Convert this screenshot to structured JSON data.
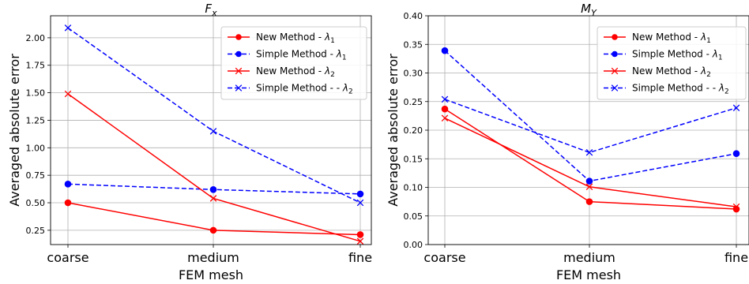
{
  "chart_data": [
    {
      "type": "line",
      "title": "F_x",
      "title_display": {
        "base": "F",
        "sub": "x"
      },
      "xlabel": "FEM mesh",
      "ylabel": "Averaged absolute error",
      "categories": [
        "coarse",
        "medium",
        "fine"
      ],
      "ylim": [
        0.12,
        2.2
      ],
      "yticks": [
        "0.25",
        "0.50",
        "0.75",
        "1.00",
        "1.25",
        "1.50",
        "1.75",
        "2.00"
      ],
      "ytick_values": [
        0.25,
        0.5,
        0.75,
        1.0,
        1.25,
        1.5,
        1.75,
        2.0
      ],
      "grid": true,
      "legend_position": "top-right",
      "series": [
        {
          "name": "New Method - λ1",
          "legend": {
            "text": "New Method - ",
            "sym": "λ",
            "sub": "1"
          },
          "color": "#ff0000",
          "linestyle": "solid",
          "marker": "circle",
          "values": [
            0.5,
            0.25,
            0.21
          ]
        },
        {
          "name": "Simple Method - λ1",
          "legend": {
            "text": "Simple Method - ",
            "sym": "λ",
            "sub": "1"
          },
          "color": "#0000ff",
          "linestyle": "dashed",
          "marker": "circle",
          "values": [
            0.67,
            0.62,
            0.58
          ]
        },
        {
          "name": "New Method - λ2",
          "legend": {
            "text": "New Method - ",
            "sym": "λ",
            "sub": "2"
          },
          "color": "#ff0000",
          "linestyle": "solid",
          "marker": "x",
          "values": [
            1.49,
            0.54,
            0.15
          ]
        },
        {
          "name": "Simple Method - - λ2",
          "legend": {
            "text": "Simple Method - - ",
            "sym": "λ",
            "sub": "2"
          },
          "color": "#0000ff",
          "linestyle": "dashed",
          "marker": "x",
          "values": [
            2.09,
            1.15,
            0.5
          ]
        }
      ]
    },
    {
      "type": "line",
      "title": "M_Y",
      "title_display": {
        "base": "M",
        "sub": "Y"
      },
      "xlabel": "FEM mesh",
      "ylabel": "Averaged absolute error",
      "categories": [
        "coarse",
        "medium",
        "fine"
      ],
      "ylim": [
        0.0,
        0.4
      ],
      "yticks": [
        "0.00",
        "0.05",
        "0.10",
        "0.15",
        "0.20",
        "0.25",
        "0.30",
        "0.35",
        "0.40"
      ],
      "ytick_values": [
        0.0,
        0.05,
        0.1,
        0.15,
        0.2,
        0.25,
        0.3,
        0.35,
        0.4
      ],
      "grid": true,
      "legend_position": "top-right",
      "series": [
        {
          "name": "New Method - λ1",
          "legend": {
            "text": "New Method - ",
            "sym": "λ",
            "sub": "1"
          },
          "color": "#ff0000",
          "linestyle": "solid",
          "marker": "circle",
          "values": [
            0.237,
            0.075,
            0.062
          ]
        },
        {
          "name": "Simple Method - λ1",
          "legend": {
            "text": "Simple Method - ",
            "sym": "λ",
            "sub": "1"
          },
          "color": "#0000ff",
          "linestyle": "dashed",
          "marker": "circle",
          "values": [
            0.339,
            0.111,
            0.159
          ]
        },
        {
          "name": "New Method - λ2",
          "legend": {
            "text": "New Method - ",
            "sym": "λ",
            "sub": "2"
          },
          "color": "#ff0000",
          "linestyle": "solid",
          "marker": "x",
          "values": [
            0.221,
            0.101,
            0.066
          ]
        },
        {
          "name": "Simple Method - - λ2",
          "legend": {
            "text": "Simple Method - - ",
            "sym": "λ",
            "sub": "2"
          },
          "color": "#0000ff",
          "linestyle": "dashed",
          "marker": "x",
          "values": [
            0.254,
            0.161,
            0.239
          ]
        }
      ]
    }
  ]
}
